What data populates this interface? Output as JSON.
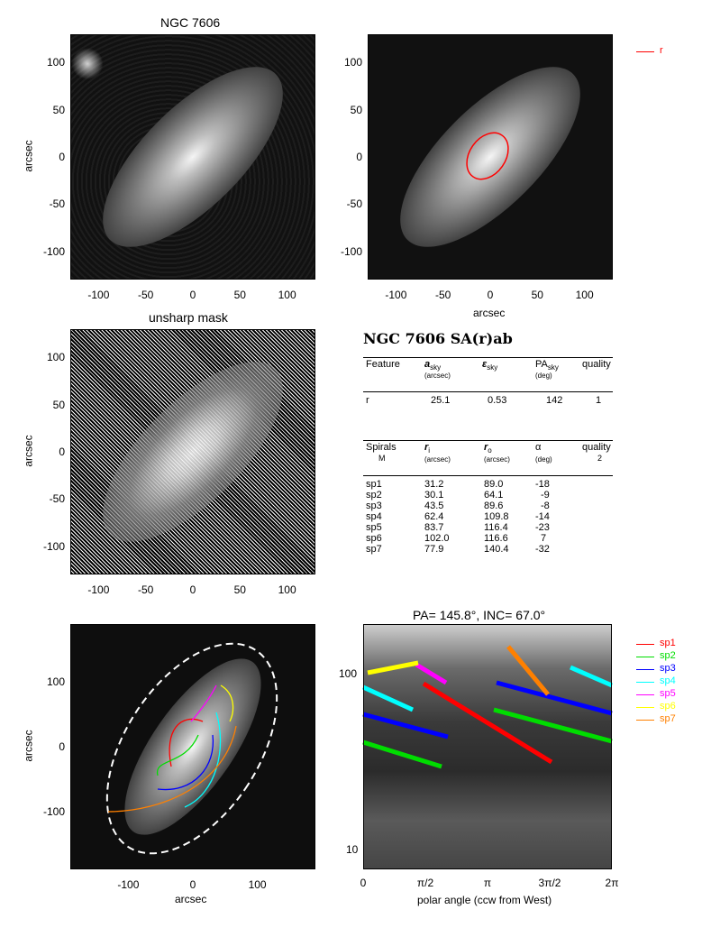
{
  "figure": {
    "title_top_left": "NGC 7606",
    "title_mid_left": "unsharp mask",
    "title_bottom_right": "PA= 145.8°, INC=  67.0°",
    "axis_label_arcsec": "arcsec",
    "xticks": [
      "-100",
      "-50",
      "0",
      "50",
      "100"
    ],
    "yticks": [
      "100",
      "50",
      "0",
      "-50",
      "-100"
    ],
    "xticks_bottom_left": [
      "-100",
      "0",
      "100"
    ],
    "yticks_bottom_left": [
      "100",
      "0",
      "-100"
    ],
    "legend_r": "r",
    "polar_xlabel": "polar angle (ccw from West)",
    "polar_xticks": [
      "0",
      "π/2",
      "π",
      "3π/2",
      "2π"
    ],
    "polar_yticks": [
      "100",
      "10"
    ],
    "colors": {
      "sp1": "#ff0000",
      "sp2": "#00dd00",
      "sp3": "#0000ff",
      "sp4": "#00ffff",
      "sp5": "#ff00ff",
      "sp6": "#ffff00",
      "sp7": "#ff8000",
      "r": "#ff0000"
    },
    "spiral_legend": [
      "sp1",
      "sp2",
      "sp3",
      "sp4",
      "sp5",
      "sp6",
      "sp7"
    ]
  },
  "table": {
    "heading": "NGC 7606  SA(r)ab",
    "ring_header": {
      "feature": "Feature",
      "a": "a",
      "a_sub": "sky",
      "a_unit": "(arcsec)",
      "eps": "ε",
      "eps_sub": "sky",
      "pa": "PA",
      "pa_sub": "sky",
      "pa_unit": "(deg)",
      "quality": "quality"
    },
    "ring_rows": [
      {
        "feature": "r",
        "a": "25.1",
        "eps": "0.53",
        "pa": "142",
        "quality": "1"
      }
    ],
    "spiral_header": {
      "spirals": "Spirals",
      "m": "M",
      "ri": "r",
      "ri_sub": "i",
      "ri_unit": "(arcsec)",
      "ro": "r",
      "ro_sub": "o",
      "ro_unit": "(arcsec)",
      "alpha": "α",
      "alpha_unit": "(deg)",
      "quality": "quality",
      "quality_val": "2"
    },
    "spiral_rows": [
      {
        "name": "sp1",
        "ri": "31.2",
        "ro": "89.0",
        "alpha": "-18"
      },
      {
        "name": "sp2",
        "ri": "30.1",
        "ro": "64.1",
        "alpha": "-9"
      },
      {
        "name": "sp3",
        "ri": "43.5",
        "ro": "89.6",
        "alpha": "-8"
      },
      {
        "name": "sp4",
        "ri": "62.4",
        "ro": "109.8",
        "alpha": "-14"
      },
      {
        "name": "sp5",
        "ri": "83.7",
        "ro": "116.4",
        "alpha": "-23"
      },
      {
        "name": "sp6",
        "ri": "102.0",
        "ro": "116.6",
        "alpha": "7"
      },
      {
        "name": "sp7",
        "ri": "77.9",
        "ro": "140.4",
        "alpha": "-32"
      }
    ]
  }
}
